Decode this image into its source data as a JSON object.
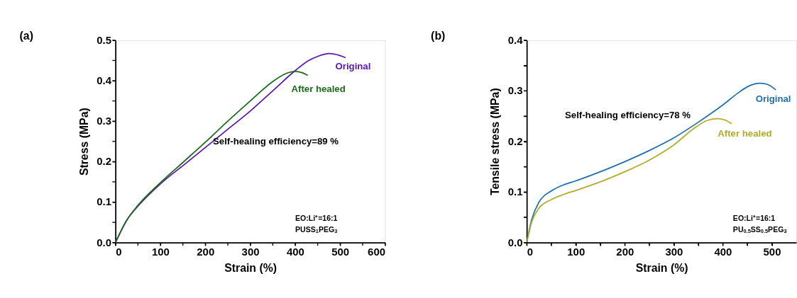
{
  "chart_data": [
    {
      "type": "line",
      "title": "(a)",
      "xlabel": "Strain (%)",
      "ylabel": "Stress (MPa)",
      "xlim": [
        0,
        600
      ],
      "ylim": [
        0,
        0.5
      ],
      "xticks": [
        0,
        {
          "value": 50,
          "label": null
        },
        100,
        {
          "value": 150,
          "label": null
        },
        200,
        {
          "value": 250,
          "label": null
        },
        300,
        {
          "value": 350,
          "label": null
        },
        400,
        {
          "value": 450,
          "label": null
        },
        500,
        {
          "value": 550,
          "label": null
        },
        600
      ],
      "yticks": [
        {
          "value": 0,
          "label": "0.0"
        },
        {
          "value": 0.05,
          "label": null
        },
        0.1,
        {
          "value": 0.15,
          "label": null
        },
        0.2,
        {
          "value": 0.25,
          "label": null
        },
        0.3,
        {
          "value": 0.35,
          "label": null
        },
        0.4,
        {
          "value": 0.45,
          "label": null
        },
        0.5
      ],
      "grid": false,
      "legend": false,
      "marker": "none",
      "line_style": "solid",
      "annotations": [
        "Self-healing efficiency=89 %",
        "EO:Li⁺=16:1",
        "PUSS$_{1}$PEG$_{3}$"
      ],
      "series": [
        {
          "name": "Original",
          "color": "#5a16b0",
          "x": [
            0,
            25,
            50,
            100,
            150,
            200,
            250,
            300,
            350,
            400,
            430,
            450,
            475,
            500,
            512
          ],
          "values": [
            0,
            0.055,
            0.09,
            0.145,
            0.19,
            0.235,
            0.28,
            0.325,
            0.375,
            0.425,
            0.45,
            0.46,
            0.467,
            0.462,
            0.457
          ]
        },
        {
          "name": "After healed",
          "color": "#1b6b1b",
          "x": [
            0,
            25,
            50,
            100,
            150,
            200,
            250,
            300,
            350,
            380,
            400,
            415,
            428
          ],
          "values": [
            0,
            0.055,
            0.092,
            0.148,
            0.198,
            0.248,
            0.3,
            0.35,
            0.398,
            0.418,
            0.423,
            0.42,
            0.413
          ]
        }
      ]
    },
    {
      "type": "line",
      "title": "(b)",
      "xlabel": "Strain (%)",
      "ylabel": "Tensile stress (MPa)",
      "xlim": [
        0,
        550
      ],
      "ylim": [
        0,
        0.4
      ],
      "xticks": [
        0,
        {
          "value": 50,
          "label": null
        },
        100,
        {
          "value": 150,
          "label": null
        },
        200,
        {
          "value": 250,
          "label": null
        },
        300,
        {
          "value": 350,
          "label": null
        },
        400,
        {
          "value": 450,
          "label": null
        },
        500
      ],
      "yticks": [
        {
          "value": 0,
          "label": "0.0"
        },
        {
          "value": 0.05,
          "label": null
        },
        0.1,
        {
          "value": 0.15,
          "label": null
        },
        0.2,
        {
          "value": 0.25,
          "label": null
        },
        0.3,
        {
          "value": 0.35,
          "label": null
        },
        0.4
      ],
      "grid": false,
      "legend": false,
      "marker": "none",
      "line_style": "solid",
      "annotations": [
        "Self-healing efficiency=78 %",
        "EO:Li⁺=16:1",
        "PU$_{0.5}$SS$_{0.5}$PEG$_{3}$"
      ],
      "series": [
        {
          "name": "Original",
          "color": "#1f6fae",
          "x": [
            0,
            10,
            25,
            50,
            75,
            100,
            150,
            200,
            250,
            300,
            350,
            400,
            430,
            450,
            475,
            490,
            508
          ],
          "values": [
            0,
            0.045,
            0.08,
            0.102,
            0.114,
            0.122,
            0.14,
            0.16,
            0.182,
            0.207,
            0.238,
            0.272,
            0.295,
            0.308,
            0.315,
            0.313,
            0.302
          ]
        },
        {
          "name": "After healed",
          "color": "#b3ab2a",
          "x": [
            0,
            10,
            25,
            50,
            75,
            100,
            150,
            200,
            250,
            300,
            340,
            370,
            390,
            405,
            418
          ],
          "values": [
            0,
            0.04,
            0.068,
            0.085,
            0.095,
            0.103,
            0.12,
            0.14,
            0.163,
            0.193,
            0.225,
            0.242,
            0.245,
            0.242,
            0.235
          ]
        }
      ]
    }
  ]
}
